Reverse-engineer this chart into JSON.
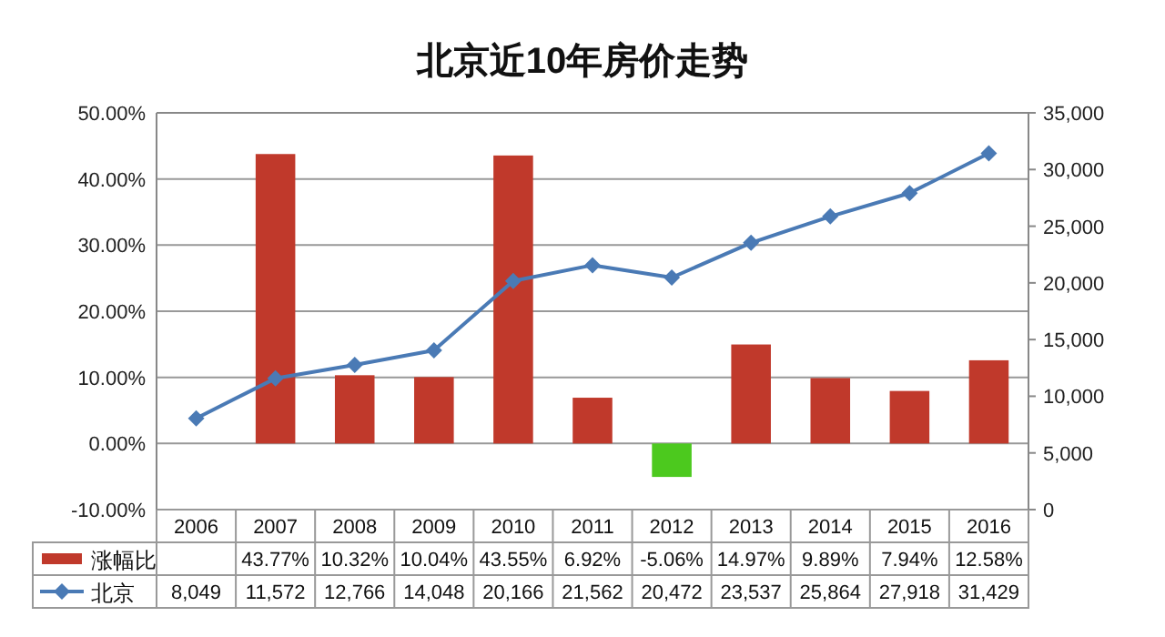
{
  "chart_data": {
    "type": "bar",
    "title": "北京近10年房价走势",
    "categories": [
      "2006",
      "2007",
      "2008",
      "2009",
      "2010",
      "2011",
      "2012",
      "2013",
      "2014",
      "2015",
      "2016"
    ],
    "series": [
      {
        "name": "涨幅比",
        "color": "#c0392b",
        "colors": [
          null,
          "#c0392b",
          "#c0392b",
          "#c0392b",
          "#c0392b",
          "#c0392b",
          "#4cc91e",
          "#c0392b",
          "#c0392b",
          "#c0392b",
          "#c0392b"
        ],
        "values": [
          null,
          43.77,
          10.32,
          10.04,
          43.55,
          6.92,
          -5.06,
          14.97,
          9.89,
          7.94,
          12.58
        ],
        "value_labels": [
          null,
          "43.77%",
          "10.32%",
          "10.04%",
          "43.55%",
          "6.92%",
          "-5.06%",
          "14.97%",
          "9.89%",
          "7.94%",
          "12.58%"
        ]
      },
      {
        "name": "北京",
        "type": "line",
        "axis": "y2",
        "color": "#4a7ab5",
        "values": [
          8049,
          11572,
          12766,
          14048,
          20166,
          21562,
          20472,
          23537,
          25864,
          27918,
          31429
        ],
        "value_labels": [
          "8,049",
          "11,572",
          "12,766",
          "14,048",
          "20,166",
          "21,562",
          "20,472",
          "23,537",
          "25,864",
          "27,918",
          "31,429"
        ]
      }
    ],
    "ylim": [
      -10,
      50
    ],
    "yticks": [
      {
        "value": -10,
        "label": "-10.00%"
      },
      {
        "value": 0,
        "label": "0.00%"
      },
      {
        "value": 10,
        "label": "10.00%"
      },
      {
        "value": 20,
        "label": "20.00%"
      },
      {
        "value": 30,
        "label": "30.00%"
      },
      {
        "value": 40,
        "label": "40.00%"
      },
      {
        "value": 50,
        "label": "50.00%"
      }
    ],
    "y2lim": [
      0,
      35000
    ],
    "y2ticks": [
      0,
      {
        "value": 5000,
        "label": "5,000"
      },
      {
        "value": 10000,
        "label": "10,000"
      },
      {
        "value": 15000,
        "label": "15,000"
      },
      {
        "value": 20000,
        "label": "20,000"
      },
      {
        "value": 25000,
        "label": "25,000"
      },
      {
        "value": 30000,
        "label": "30,000"
      },
      {
        "value": 35000,
        "label": "35,000"
      }
    ],
    "grid": "y",
    "legend": "bottom left",
    "marker": "diamond",
    "line_style": "solid",
    "data_labels": true
  }
}
